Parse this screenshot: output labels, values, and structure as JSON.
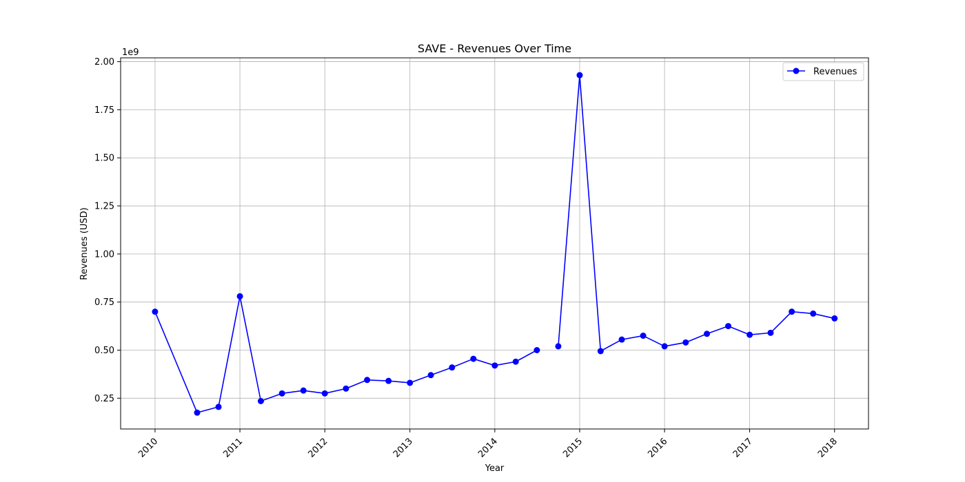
{
  "chart_data": {
    "type": "line",
    "title": "SAVE - Revenues Over Time",
    "xlabel": "Year",
    "ylabel": "Revenues (USD)",
    "y_offset_label": "1e9",
    "x_tick_labels": [
      "2010",
      "2011",
      "2012",
      "2013",
      "2014",
      "2015",
      "2016",
      "2017",
      "2018"
    ],
    "y_tick_labels": [
      "0.25",
      "0.50",
      "0.75",
      "1.00",
      "1.25",
      "1.50",
      "1.75",
      "2.00"
    ],
    "xlim": [
      "2009-08-06",
      "2018-05-27"
    ],
    "ylim": [
      0.09,
      2.02
    ],
    "y_unit": "1e9 USD",
    "grid": true,
    "legend_position": "top-right",
    "series": [
      {
        "name": "Revenues",
        "color": "#0000ff",
        "marker": "circle",
        "points": [
          {
            "x": "2010-01-01",
            "y": 0.7
          },
          {
            "x": "2010-07-01",
            "y": 0.175
          },
          {
            "x": "2010-10-01",
            "y": 0.205
          },
          {
            "x": "2011-01-01",
            "y": 0.78
          },
          {
            "x": "2011-04-01",
            "y": 0.235
          },
          {
            "x": "2011-07-01",
            "y": 0.275
          },
          {
            "x": "2011-10-01",
            "y": 0.29
          },
          {
            "x": "2012-01-01",
            "y": 0.275
          },
          {
            "x": "2012-04-01",
            "y": 0.3
          },
          {
            "x": "2012-07-01",
            "y": 0.345
          },
          {
            "x": "2012-10-01",
            "y": 0.34
          },
          {
            "x": "2013-01-01",
            "y": 0.33
          },
          {
            "x": "2013-04-01",
            "y": 0.37
          },
          {
            "x": "2013-07-01",
            "y": 0.41
          },
          {
            "x": "2013-10-01",
            "y": 0.455
          },
          {
            "x": "2014-01-01",
            "y": 0.42
          },
          {
            "x": "2014-04-01",
            "y": 0.44
          },
          {
            "x": "2014-07-01",
            "y": 0.5
          },
          {
            "x": "2014-10-01",
            "y": 0.52
          },
          {
            "x": "2015-01-01",
            "y": 1.93
          },
          {
            "x": "2015-04-01",
            "y": 0.495
          },
          {
            "x": "2015-07-01",
            "y": 0.555
          },
          {
            "x": "2015-10-01",
            "y": 0.575
          },
          {
            "x": "2016-01-01",
            "y": 0.52
          },
          {
            "x": "2016-04-01",
            "y": 0.54
          },
          {
            "x": "2016-07-01",
            "y": 0.585
          },
          {
            "x": "2016-10-01",
            "y": 0.625
          },
          {
            "x": "2017-01-01",
            "y": 0.58
          },
          {
            "x": "2017-04-01",
            "y": 0.59
          },
          {
            "x": "2017-07-01",
            "y": 0.7
          },
          {
            "x": "2017-10-01",
            "y": 0.69
          },
          {
            "x": "2018-01-01",
            "y": 0.665
          }
        ],
        "line_breaks_after": [
          "2014-07-01"
        ]
      }
    ]
  }
}
